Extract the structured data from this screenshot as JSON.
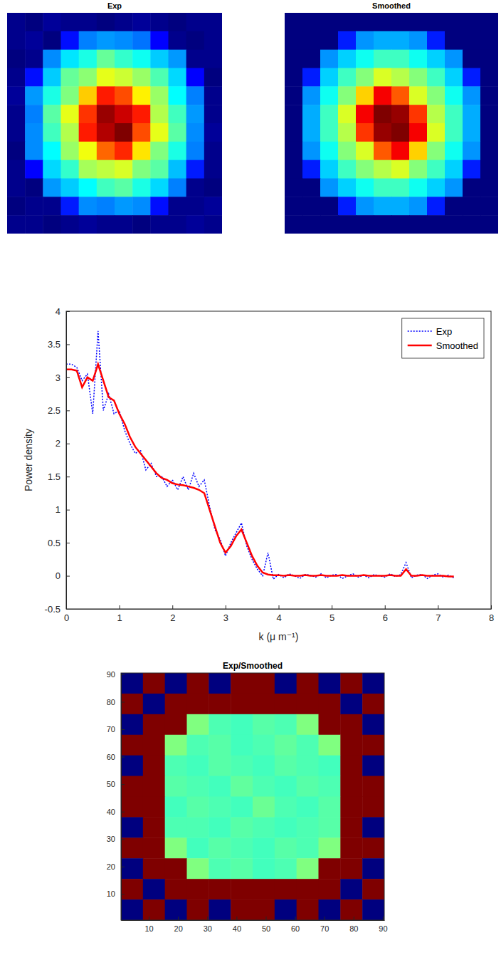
{
  "chart_data": [
    {
      "type": "heatmap",
      "title": "Exp",
      "tick_labels": false,
      "cells": [
        [
          0.05,
          0.04,
          0.06,
          0.05,
          0.05,
          0.04,
          0.05,
          0.06,
          0.05,
          0.04,
          0.05,
          0.05
        ],
        [
          0.05,
          0.06,
          0.04,
          0.15,
          0.24,
          0.26,
          0.25,
          0.23,
          0.14,
          0.05,
          0.04,
          0.05
        ],
        [
          0.04,
          0.05,
          0.25,
          0.32,
          0.36,
          0.42,
          0.38,
          0.35,
          0.3,
          0.26,
          0.05,
          0.05
        ],
        [
          0.05,
          0.15,
          0.3,
          0.42,
          0.45,
          0.52,
          0.5,
          0.46,
          0.4,
          0.31,
          0.14,
          0.04
        ],
        [
          0.06,
          0.26,
          0.36,
          0.44,
          0.58,
          0.72,
          0.68,
          0.55,
          0.46,
          0.34,
          0.24,
          0.05
        ],
        [
          0.05,
          0.24,
          0.41,
          0.52,
          0.7,
          0.82,
          0.78,
          0.72,
          0.48,
          0.39,
          0.26,
          0.05
        ],
        [
          0.05,
          0.25,
          0.39,
          0.48,
          0.72,
          0.8,
          0.84,
          0.68,
          0.52,
          0.41,
          0.25,
          0.06
        ],
        [
          0.04,
          0.25,
          0.34,
          0.46,
          0.53,
          0.66,
          0.71,
          0.56,
          0.44,
          0.36,
          0.24,
          0.05
        ],
        [
          0.05,
          0.14,
          0.31,
          0.38,
          0.47,
          0.49,
          0.51,
          0.44,
          0.41,
          0.29,
          0.16,
          0.05
        ],
        [
          0.05,
          0.04,
          0.26,
          0.3,
          0.34,
          0.39,
          0.41,
          0.36,
          0.31,
          0.24,
          0.05,
          0.04
        ],
        [
          0.04,
          0.05,
          0.05,
          0.16,
          0.25,
          0.24,
          0.26,
          0.25,
          0.15,
          0.05,
          0.05,
          0.06
        ],
        [
          0.05,
          0.05,
          0.04,
          0.05,
          0.06,
          0.05,
          0.05,
          0.04,
          0.05,
          0.05,
          0.06,
          0.05
        ]
      ]
    },
    {
      "type": "heatmap",
      "title": "Smoothed",
      "tick_labels": false,
      "cells": [
        [
          0.05,
          0.05,
          0.05,
          0.05,
          0.05,
          0.05,
          0.05,
          0.05,
          0.05,
          0.05,
          0.05,
          0.05
        ],
        [
          0.05,
          0.05,
          0.05,
          0.18,
          0.28,
          0.3,
          0.3,
          0.28,
          0.18,
          0.05,
          0.05,
          0.05
        ],
        [
          0.05,
          0.05,
          0.28,
          0.33,
          0.38,
          0.42,
          0.42,
          0.38,
          0.33,
          0.28,
          0.05,
          0.05
        ],
        [
          0.05,
          0.18,
          0.33,
          0.42,
          0.48,
          0.55,
          0.52,
          0.48,
          0.42,
          0.33,
          0.18,
          0.05
        ],
        [
          0.05,
          0.28,
          0.38,
          0.48,
          0.62,
          0.8,
          0.72,
          0.55,
          0.48,
          0.38,
          0.28,
          0.05
        ],
        [
          0.05,
          0.3,
          0.42,
          0.55,
          0.8,
          0.9,
          0.88,
          0.75,
          0.52,
          0.42,
          0.3,
          0.05
        ],
        [
          0.05,
          0.3,
          0.42,
          0.52,
          0.75,
          0.88,
          0.9,
          0.8,
          0.55,
          0.42,
          0.3,
          0.05
        ],
        [
          0.05,
          0.28,
          0.38,
          0.48,
          0.55,
          0.72,
          0.8,
          0.62,
          0.48,
          0.38,
          0.28,
          0.05
        ],
        [
          0.05,
          0.18,
          0.33,
          0.42,
          0.48,
          0.52,
          0.55,
          0.48,
          0.42,
          0.33,
          0.18,
          0.05
        ],
        [
          0.05,
          0.05,
          0.28,
          0.33,
          0.38,
          0.42,
          0.42,
          0.38,
          0.33,
          0.28,
          0.05,
          0.05
        ],
        [
          0.05,
          0.05,
          0.05,
          0.18,
          0.28,
          0.3,
          0.3,
          0.28,
          0.18,
          0.05,
          0.05,
          0.05
        ],
        [
          0.05,
          0.05,
          0.05,
          0.05,
          0.05,
          0.05,
          0.05,
          0.05,
          0.05,
          0.05,
          0.05,
          0.05
        ]
      ]
    },
    {
      "type": "line",
      "xlabel": "k (μ m⁻¹)",
      "ylabel": "Power density",
      "xlim": [
        0,
        8
      ],
      "ylim": [
        -0.5,
        4
      ],
      "xticks": [
        0,
        1,
        2,
        3,
        4,
        5,
        6,
        7,
        8
      ],
      "yticks": [
        -0.5,
        0,
        0.5,
        1,
        1.5,
        2,
        2.5,
        3,
        3.5,
        4
      ],
      "legend": "upper right",
      "x": [
        0,
        0.1,
        0.2,
        0.3,
        0.4,
        0.5,
        0.6,
        0.7,
        0.8,
        0.9,
        1,
        1.1,
        1.2,
        1.3,
        1.4,
        1.5,
        1.6,
        1.7,
        1.8,
        1.9,
        2,
        2.1,
        2.2,
        2.3,
        2.4,
        2.5,
        2.6,
        2.7,
        2.8,
        2.9,
        3,
        3.1,
        3.2,
        3.3,
        3.4,
        3.5,
        3.6,
        3.7,
        3.8,
        3.9,
        4,
        4.1,
        4.2,
        4.3,
        4.4,
        4.5,
        4.6,
        4.7,
        4.8,
        4.9,
        5,
        5.1,
        5.2,
        5.3,
        5.4,
        5.5,
        5.6,
        5.7,
        5.8,
        5.9,
        6,
        6.1,
        6.2,
        6.3,
        6.4,
        6.5,
        6.6,
        6.7,
        6.8,
        6.9,
        7,
        7.1,
        7.2,
        7.3
      ],
      "series": [
        {
          "name": "Exp",
          "color": "#0000ff",
          "line_style": "dotted",
          "values": [
            3.2,
            3.2,
            3.15,
            2.95,
            3.05,
            2.45,
            3.7,
            2.5,
            2.75,
            2.45,
            2.5,
            2.2,
            2.0,
            1.85,
            1.9,
            1.6,
            1.7,
            1.5,
            1.5,
            1.35,
            1.45,
            1.3,
            1.5,
            1.3,
            1.55,
            1.35,
            1.45,
            1.05,
            0.7,
            0.55,
            0.3,
            0.5,
            0.65,
            0.8,
            0.45,
            0.25,
            0.1,
            0.0,
            0.35,
            -0.05,
            0.02,
            -0.03,
            0.03,
            0.0,
            -0.04,
            0.02,
            0.01,
            -0.02,
            0.03,
            -0.03,
            0.01,
            0.02,
            -0.04,
            0.0,
            0.03,
            -0.02,
            0.01,
            -0.03,
            0.02,
            0.0,
            -0.02,
            0.03,
            -0.01,
            0.02,
            0.2,
            -0.03,
            0.01,
            0.02,
            -0.04,
            0.01,
            0.03,
            -0.02,
            0.01,
            -0.03
          ]
        },
        {
          "name": "Smoothed",
          "color": "#ff0000",
          "line_style": "solid",
          "values": [
            3.12,
            3.12,
            3.1,
            2.85,
            3.0,
            2.95,
            3.2,
            2.95,
            2.7,
            2.65,
            2.45,
            2.3,
            2.1,
            1.95,
            1.85,
            1.75,
            1.65,
            1.55,
            1.48,
            1.45,
            1.4,
            1.38,
            1.37,
            1.35,
            1.33,
            1.3,
            1.25,
            1.0,
            0.75,
            0.5,
            0.35,
            0.45,
            0.6,
            0.7,
            0.5,
            0.3,
            0.15,
            0.05,
            0.02,
            0.01,
            0.01,
            0,
            0.01,
            0,
            0,
            0.01,
            0,
            0,
            0.01,
            0,
            0,
            0,
            0.01,
            0,
            0,
            0,
            0.01,
            0,
            0,
            0,
            0,
            0.01,
            0,
            0,
            0.1,
            0,
            0,
            0.01,
            0,
            0,
            0,
            0,
            -0.01,
            -0.01
          ]
        }
      ]
    },
    {
      "type": "heatmap",
      "title": "Exp/Smoothed",
      "xlim": [
        0.5,
        90.5
      ],
      "ylim": [
        0.5,
        90.5
      ],
      "xticks": [
        10,
        20,
        30,
        40,
        50,
        60,
        70,
        80,
        90
      ],
      "yticks": [
        10,
        20,
        30,
        40,
        50,
        60,
        70,
        80,
        90
      ],
      "cells": [
        [
          0,
          1,
          0,
          1,
          0,
          1,
          1,
          0,
          1,
          0,
          1,
          0
        ],
        [
          1,
          0,
          1,
          1,
          1,
          1,
          1,
          1,
          1,
          1,
          0,
          1
        ],
        [
          0,
          1,
          1,
          0.5,
          0.45,
          0.44,
          0.46,
          0.45,
          0.5,
          1,
          1,
          0
        ],
        [
          1,
          1,
          0.5,
          0.45,
          0.46,
          0.44,
          0.45,
          0.47,
          0.45,
          0.5,
          1,
          1
        ],
        [
          0,
          1,
          0.45,
          0.44,
          0.46,
          0.45,
          0.44,
          0.46,
          0.45,
          0.44,
          1,
          0
        ],
        [
          1,
          1,
          0.46,
          0.45,
          0.44,
          0.47,
          0.45,
          0.44,
          0.46,
          0.45,
          1,
          1
        ],
        [
          1,
          1,
          0.44,
          0.46,
          0.45,
          0.44,
          0.48,
          0.45,
          0.44,
          0.46,
          1,
          1
        ],
        [
          0,
          1,
          0.45,
          0.45,
          0.44,
          0.46,
          0.45,
          0.44,
          0.45,
          0.46,
          1,
          0
        ],
        [
          1,
          1,
          0.5,
          0.44,
          0.46,
          0.45,
          0.44,
          0.46,
          0.45,
          0.5,
          1,
          1
        ],
        [
          0,
          1,
          1,
          0.5,
          0.45,
          0.46,
          0.44,
          0.45,
          0.5,
          1,
          1,
          0
        ],
        [
          1,
          0,
          1,
          1,
          1,
          1,
          1,
          1,
          1,
          1,
          0,
          1
        ],
        [
          0,
          1,
          0,
          1,
          0,
          1,
          1,
          0,
          1,
          0,
          1,
          0
        ]
      ]
    }
  ]
}
